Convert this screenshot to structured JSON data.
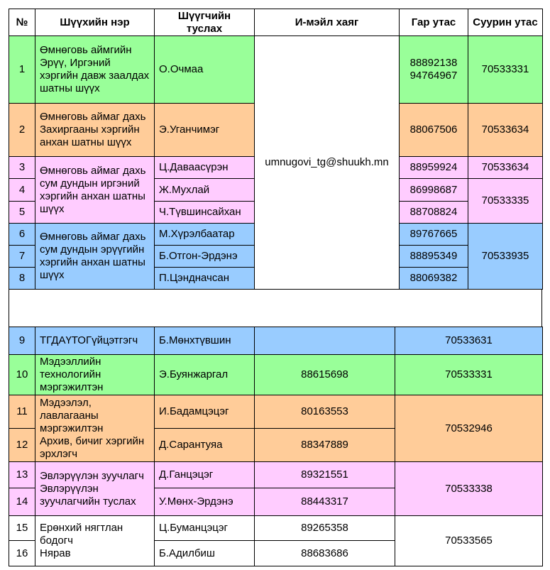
{
  "headers": {
    "no": "№",
    "court": "Шүүхийн нэр",
    "assistant": "Шүүгчийн туслах",
    "email": "И-мэйл хаяг",
    "mobile": "Гар утас",
    "landline": "Суурин утас"
  },
  "colors": {
    "green": "#99ff99",
    "orange": "#ffcc99",
    "pink": "#ffccff",
    "blue": "#99ccff"
  },
  "email": "umnugovi_tg@shuukh.mn",
  "top": {
    "courts": [
      "Өмнөговь аймгийн Эрүү, Иргэний хэргийн давж заалдах шатны шүүх",
      "Өмнөговь аймаг дахь Захиргааны хэргийн анхан шатны шүүх",
      "Өмнөговь аймаг дахь сум дундын иргэний хэргийн анхан шатны шүүх",
      "Өмнөговь аймаг дахь сум дундын эрүүгийн хэргийн анхан шатны шүүх"
    ],
    "rows": [
      {
        "no": "1",
        "assistant": "О.Очмаа",
        "mobile": "88892138\n94764967"
      },
      {
        "no": "2",
        "assistant": "Э.Уганчимэг",
        "mobile": "88067506"
      },
      {
        "no": "3",
        "assistant": "Ц.Даваасүрэн",
        "mobile": "88959924"
      },
      {
        "no": "4",
        "assistant": "Ж.Мухлай",
        "mobile": "86998687"
      },
      {
        "no": "5",
        "assistant": "Ч.Түвшинсайхан",
        "mobile": "88708824"
      },
      {
        "no": "6",
        "assistant": "М.Хүрэлбаатар",
        "mobile": "89767665"
      },
      {
        "no": "7",
        "assistant": "Б.Отгон-Эрдэнэ",
        "mobile": "88895349"
      },
      {
        "no": "8",
        "assistant": "П.Цэндначсан",
        "mobile": "88069382"
      }
    ],
    "landlines": [
      "70533331",
      "70533634",
      "70533634",
      "70533335",
      "70533935"
    ]
  },
  "bottom": {
    "rows": [
      {
        "no": "9",
        "position": "ТГДАҮТОГүйцэтгэгч",
        "assistant": "Б.Мөнхтүвшин",
        "mobile": ""
      },
      {
        "no": "10",
        "position": "Мэдээллийн технологийн мэргэжилтэн",
        "assistant": "Э.Буянжаргал",
        "mobile": "88615698"
      },
      {
        "no": "11",
        "position": "Мэдээлэл, лавлагааны мэргэжилтэн",
        "assistant": "И.Бадамцэцэг",
        "mobile": "80163553"
      },
      {
        "no": "12",
        "position": "Архив, бичиг хэргийн эрхлэгч",
        "assistant": "Д.Сарантуяа",
        "mobile": "88347889"
      },
      {
        "no": "13",
        "position": "Эвлэрүүлэн зуучлагч",
        "assistant": "Д.Ганцэцэг",
        "mobile": "89321551"
      },
      {
        "no": "14",
        "position": "Эвлэрүүлэн зуучлагчийн туслах",
        "assistant": "У.Мөнх-Эрдэнэ",
        "mobile": "88443317"
      },
      {
        "no": "15",
        "position": "Ерөнхий нягтлан бодогч",
        "assistant": "Ц.Буманцэцэг",
        "mobile": "89265358"
      },
      {
        "no": "16",
        "position": "Нярав",
        "assistant": "Б.Адилбиш",
        "mobile": "88683686"
      }
    ],
    "landlines": [
      "70533631",
      "70533331",
      "70532946",
      "70533338",
      "70533565"
    ]
  }
}
